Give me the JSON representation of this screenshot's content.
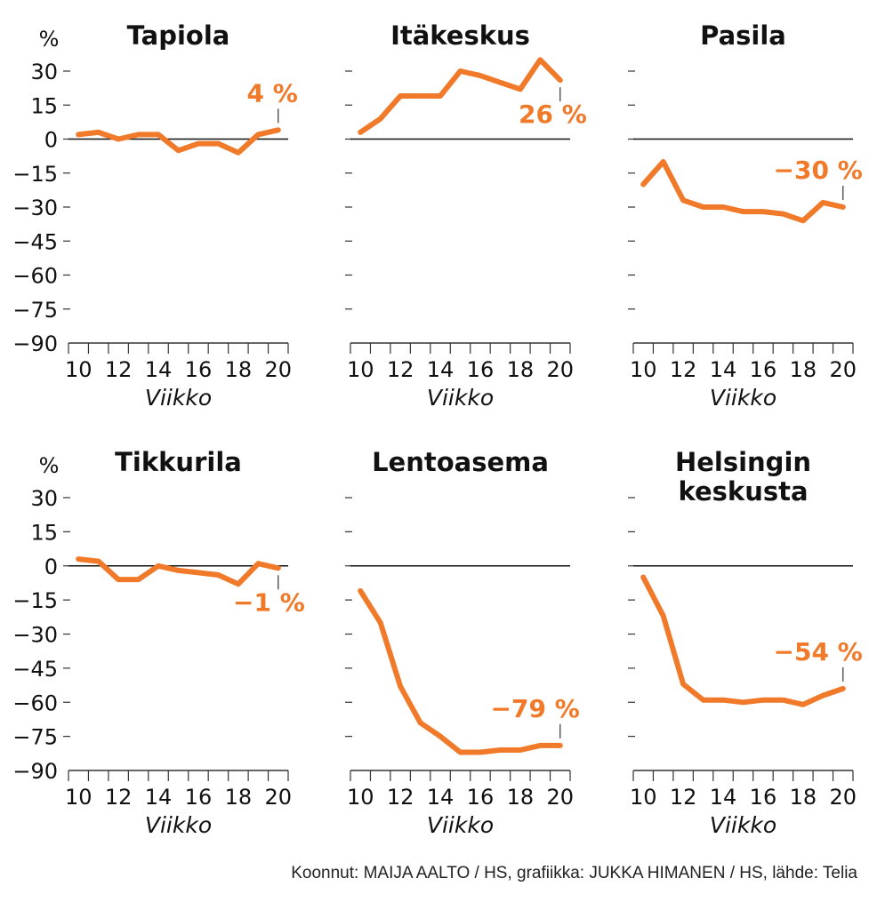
{
  "chart_data": {
    "type": "line",
    "unit_label": "%",
    "xlabel": "Viikko",
    "ylim": [
      -90,
      30
    ],
    "yticks": [
      30,
      15,
      0,
      -15,
      -30,
      -45,
      -60,
      -75,
      -90
    ],
    "ytick_labels": [
      "30",
      "15",
      "0",
      "−15",
      "−30",
      "−45",
      "−60",
      "−75",
      "−90"
    ],
    "x": [
      10,
      11,
      12,
      13,
      14,
      15,
      16,
      17,
      18,
      19,
      20
    ],
    "xtick_labels": [
      "10",
      "12",
      "14",
      "16",
      "18",
      "20"
    ],
    "line_color": "#f07a2a",
    "panels": [
      {
        "title": [
          "Tapiola"
        ],
        "values": [
          2,
          3,
          0,
          2,
          2,
          -5,
          -2,
          -2,
          -6,
          2,
          4
        ],
        "end_label": "4 %",
        "label_pos": "above"
      },
      {
        "title": [
          "Itäkeskus"
        ],
        "values": [
          3,
          9,
          19,
          19,
          19,
          30,
          28,
          25,
          22,
          35,
          26
        ],
        "end_label": "26 %",
        "label_pos": "below"
      },
      {
        "title": [
          "Pasila"
        ],
        "values": [
          -20,
          -10,
          -27,
          -30,
          -30,
          -32,
          -32,
          -33,
          -36,
          -28,
          -30
        ],
        "end_label": "−30 %",
        "label_pos": "above"
      },
      {
        "title": [
          "Tikkurila"
        ],
        "values": [
          3,
          2,
          -6,
          -6,
          0,
          -2,
          -3,
          -4,
          -8,
          1,
          -1
        ],
        "end_label": "−1 %",
        "label_pos": "below"
      },
      {
        "title": [
          "Lentoasema"
        ],
        "values": [
          -11,
          -25,
          -53,
          -69,
          -75,
          -82,
          -82,
          -81,
          -81,
          -79,
          -79
        ],
        "end_label": "−79 %",
        "label_pos": "above"
      },
      {
        "title": [
          "Helsingin",
          "keskusta"
        ],
        "values": [
          -5,
          -22,
          -52,
          -59,
          -59,
          -60,
          -59,
          -59,
          -61,
          -57,
          -54
        ],
        "end_label": "−54 %",
        "label_pos": "above"
      }
    ]
  },
  "footer": {
    "credit": "Koonnut: MAIJA AALTO / HS, grafiikka: JUKKA HIMANEN / HS, lähde: Telia"
  }
}
